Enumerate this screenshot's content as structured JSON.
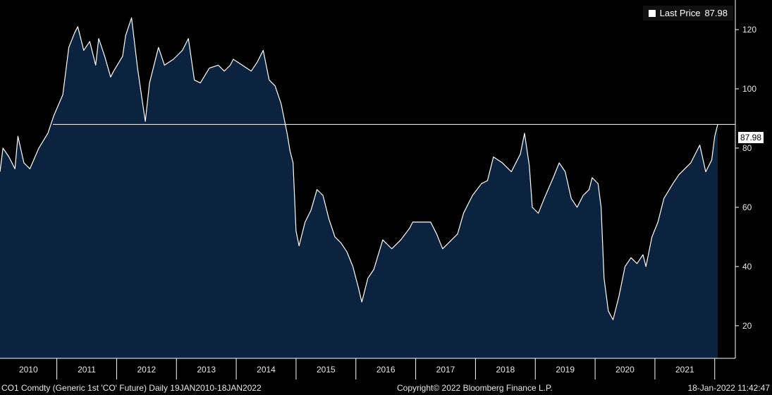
{
  "legend": {
    "label": "Last Price",
    "value": "87.98",
    "color": "#ffffff"
  },
  "last_price_tag": "87.98",
  "footer": {
    "left": "CO1 Comdty (Generic 1st 'CO' Future)  Daily 19JAN2010-18JAN2022",
    "center": "Copyright© 2022 Bloomberg Finance L.P.",
    "right": "18-Jan-2022 11:42:47"
  },
  "colors": {
    "area_fill": "#0c2340",
    "line": "#ffffff",
    "background": "#000000"
  },
  "chart_data": {
    "type": "area",
    "title": "",
    "xlabel": "",
    "ylabel": "",
    "x_ticks": [
      "2010",
      "2011",
      "2012",
      "2013",
      "2014",
      "2015",
      "2016",
      "2017",
      "2018",
      "2019",
      "2020",
      "2021"
    ],
    "y_ticks": [
      20,
      40,
      60,
      80,
      100,
      120
    ],
    "ylim": [
      9,
      130
    ],
    "xlim": [
      2010.05,
      2022.05
    ],
    "grid": false,
    "reference_line": 87.98,
    "series": [
      {
        "name": "Last Price",
        "x": [
          2010.05,
          2010.1,
          2010.2,
          2010.3,
          2010.35,
          2010.45,
          2010.55,
          2010.7,
          2010.85,
          2010.95,
          2011.1,
          2011.2,
          2011.3,
          2011.35,
          2011.45,
          2011.55,
          2011.65,
          2011.7,
          2011.8,
          2011.9,
          2011.95,
          2012.1,
          2012.15,
          2012.25,
          2012.35,
          2012.45,
          2012.48,
          2012.55,
          2012.7,
          2012.8,
          2012.95,
          2013.1,
          2013.2,
          2013.3,
          2013.4,
          2013.55,
          2013.7,
          2013.8,
          2013.9,
          2013.95,
          2014.1,
          2014.25,
          2014.35,
          2014.45,
          2014.55,
          2014.65,
          2014.75,
          2014.85,
          2014.9,
          2014.95,
          2015.0,
          2015.05,
          2015.15,
          2015.25,
          2015.35,
          2015.45,
          2015.55,
          2015.65,
          2015.75,
          2015.85,
          2015.95,
          2016.04,
          2016.1,
          2016.2,
          2016.3,
          2016.45,
          2016.6,
          2016.75,
          2016.9,
          2016.95,
          2017.1,
          2017.25,
          2017.35,
          2017.45,
          2017.55,
          2017.7,
          2017.8,
          2017.9,
          2017.95,
          2018.1,
          2018.2,
          2018.3,
          2018.45,
          2018.6,
          2018.75,
          2018.82,
          2018.9,
          2018.95,
          2019.05,
          2019.15,
          2019.3,
          2019.4,
          2019.5,
          2019.6,
          2019.7,
          2019.8,
          2019.9,
          2019.95,
          2020.05,
          2020.1,
          2020.15,
          2020.22,
          2020.3,
          2020.4,
          2020.5,
          2020.6,
          2020.7,
          2020.8,
          2020.85,
          2020.95,
          2021.05,
          2021.15,
          2021.3,
          2021.4,
          2021.5,
          2021.6,
          2021.7,
          2021.75,
          2021.85,
          2021.9,
          2021.95,
          2022.0,
          2022.05
        ],
        "y": [
          72,
          80,
          77,
          73,
          84,
          75,
          73,
          80,
          85,
          91,
          98,
          114,
          119,
          121,
          113,
          116,
          108,
          117,
          111,
          104,
          106,
          111,
          118,
          124,
          107,
          93,
          89,
          102,
          114,
          108,
          110,
          113,
          117,
          103,
          102,
          107,
          108,
          106,
          108,
          110,
          108,
          106,
          109,
          113,
          103,
          101,
          95,
          85,
          79,
          75,
          52,
          47,
          55,
          59,
          66,
          64,
          56,
          50,
          48,
          45,
          40,
          33,
          28,
          36,
          39,
          49,
          46,
          49,
          53,
          55,
          55,
          55,
          51,
          46,
          48,
          51,
          58,
          62,
          64,
          68,
          69,
          77,
          75,
          72,
          78,
          85,
          74,
          60,
          58,
          63,
          70,
          75,
          72,
          63,
          60,
          64,
          66,
          70,
          68,
          60,
          36,
          25,
          22,
          30,
          40,
          43,
          41,
          44,
          40,
          50,
          55,
          63,
          68,
          71,
          73,
          75,
          79,
          81,
          72,
          74,
          76,
          84,
          87.98
        ]
      }
    ]
  }
}
